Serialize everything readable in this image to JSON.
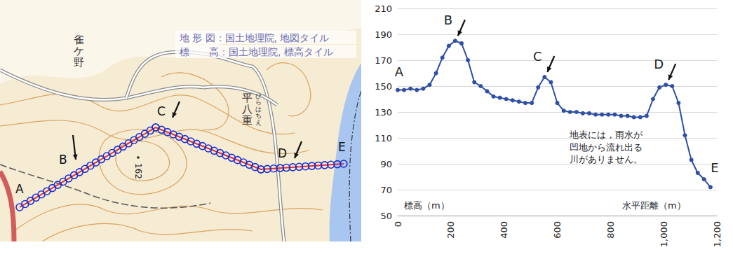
{
  "map": {
    "credits": [
      "地 形 図：国土地理院, 地図タイル",
      "標　　高：国土地理院, 標高タイル"
    ],
    "place_names": [
      "雀ケ野",
      "平八重"
    ],
    "reading": "ひらはちえ",
    "spot_height": 162,
    "route_labels": [
      "A",
      "B",
      "C",
      "D",
      "E"
    ]
  },
  "chart_data": {
    "type": "line",
    "color": "#2e4fa6",
    "marker": "circle",
    "x": [
      0,
      24,
      48,
      72,
      96,
      120,
      144,
      168,
      192,
      216,
      240,
      264,
      288,
      312,
      336,
      360,
      384,
      408,
      432,
      456,
      480,
      504,
      528,
      552,
      576,
      600,
      624,
      648,
      672,
      696,
      720,
      744,
      768,
      792,
      816,
      840,
      864,
      888,
      912,
      936,
      960,
      984,
      1008,
      1032,
      1056,
      1080,
      1104,
      1128,
      1152,
      1176
    ],
    "values": [
      147,
      147,
      148,
      147,
      148,
      151,
      160,
      172,
      181,
      185,
      183,
      170,
      153,
      150,
      146,
      142,
      141,
      140,
      139,
      138,
      137,
      137,
      149,
      157,
      153,
      137,
      131,
      130,
      130,
      129,
      129,
      128,
      128,
      128,
      128,
      127,
      127,
      126,
      126,
      127,
      140,
      149,
      151,
      150,
      137,
      112,
      93,
      83,
      78,
      72
    ],
    "xlim": [
      0,
      1200
    ],
    "xticks": [
      0,
      200,
      400,
      600,
      800,
      1000,
      1200
    ],
    "ylim": [
      50,
      210
    ],
    "yticks": [
      50,
      70,
      90,
      110,
      130,
      150,
      170,
      190,
      210
    ],
    "grid": true,
    "y_label": "標高（m）",
    "x_label": "水平距離（m）",
    "annotation": "地表には，雨水が\n凹地から流れ出る\n川がありません。",
    "point_labels": [
      {
        "label": "A",
        "x": 0,
        "arrow": false
      },
      {
        "label": "B",
        "x": 216,
        "arrow": true
      },
      {
        "label": "C",
        "x": 552,
        "arrow": true
      },
      {
        "label": "D",
        "x": 1008,
        "arrow": true
      },
      {
        "label": "E",
        "x": 1176,
        "arrow": false
      }
    ]
  }
}
